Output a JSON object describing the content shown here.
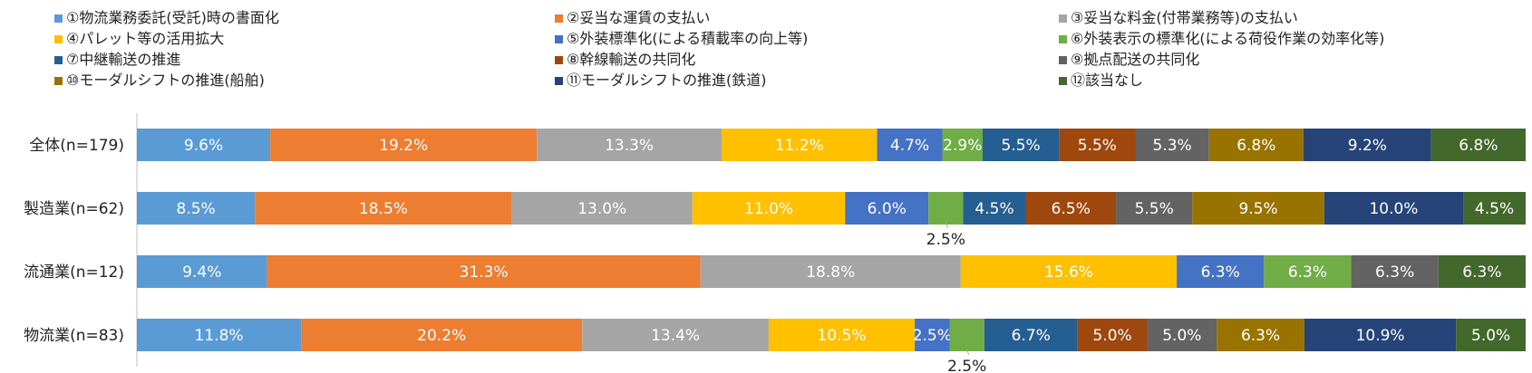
{
  "chart_data": {
    "type": "bar",
    "orientation": "horizontal",
    "stacked": "percent",
    "title": "",
    "xlabel": "",
    "ylabel": "",
    "xlim": [
      0,
      100
    ],
    "grid": false,
    "legend_position": "top",
    "categories": [
      "全体(n=179)",
      "製造業(n=62)",
      "流通業(n=12)",
      "物流業(n=83)"
    ],
    "series": [
      {
        "name": "①物流業務委託(受託)時の書面化",
        "color": "#5B9BD5",
        "values": [
          9.6,
          8.5,
          9.4,
          11.8
        ]
      },
      {
        "name": "②妥当な運賃の支払い",
        "color": "#ED7D31",
        "values": [
          19.2,
          18.5,
          31.3,
          20.2
        ]
      },
      {
        "name": "③妥当な料金(付帯業務等)の支払い",
        "color": "#A5A5A5",
        "values": [
          13.3,
          13.0,
          18.8,
          13.4
        ]
      },
      {
        "name": "④パレット等の活用拡大",
        "color": "#FFC000",
        "values": [
          11.2,
          11.0,
          15.6,
          10.5
        ]
      },
      {
        "name": "⑤外装標準化(による積載率の向上等)",
        "color": "#4472C4",
        "values": [
          4.7,
          6.0,
          6.3,
          2.5
        ]
      },
      {
        "name": "⑥外装表示の標準化(による荷役作業の効率化等)",
        "color": "#70AD47",
        "values": [
          2.9,
          2.5,
          6.3,
          2.5
        ]
      },
      {
        "name": "⑦中継輸送の推進",
        "color": "#255E91",
        "values": [
          5.5,
          4.5,
          0,
          6.7
        ]
      },
      {
        "name": "⑧幹線輸送の共同化",
        "color": "#9E480E",
        "values": [
          5.5,
          6.5,
          0,
          5.0
        ]
      },
      {
        "name": "⑨拠点配送の共同化",
        "color": "#636363",
        "values": [
          5.3,
          5.5,
          6.3,
          5.0
        ]
      },
      {
        "name": "⑩モーダルシフトの推進(船舶)",
        "color": "#997300",
        "values": [
          6.8,
          9.5,
          0,
          6.3
        ]
      },
      {
        "name": "⑪モーダルシフトの推進(鉄道)",
        "color": "#264478",
        "values": [
          9.2,
          10.0,
          0,
          10.9
        ]
      },
      {
        "name": "⑫該当なし",
        "color": "#43682B",
        "values": [
          6.8,
          4.5,
          6.3,
          5.0
        ]
      }
    ],
    "data_labels": [
      [
        "9.6%",
        "19.2%",
        "13.3%",
        "11.2%",
        "4.7%",
        "2.9%",
        "5.5%",
        "5.5%",
        "5.3%",
        "6.8%",
        "9.2%",
        "6.8%"
      ],
      [
        "8.5%",
        "18.5%",
        "13.0%",
        "11.0%",
        "6.0%",
        "2.5%",
        "4.5%",
        "6.5%",
        "5.5%",
        "9.5%",
        "10.0%",
        "4.5%"
      ],
      [
        "9.4%",
        "31.3%",
        "18.8%",
        "15.6%",
        "6.3%",
        "6.3%",
        "",
        "",
        "6.3%",
        "",
        "",
        "6.3%"
      ],
      [
        "11.8%",
        "20.2%",
        "13.4%",
        "10.5%",
        "2.5%",
        "2.5%",
        "6.7%",
        "5.0%",
        "5.0%",
        "6.3%",
        "10.9%",
        "5.0%"
      ]
    ],
    "outside_labels": [
      {
        "category": 1,
        "series": 5
      },
      {
        "category": 3,
        "series": 5
      }
    ]
  }
}
